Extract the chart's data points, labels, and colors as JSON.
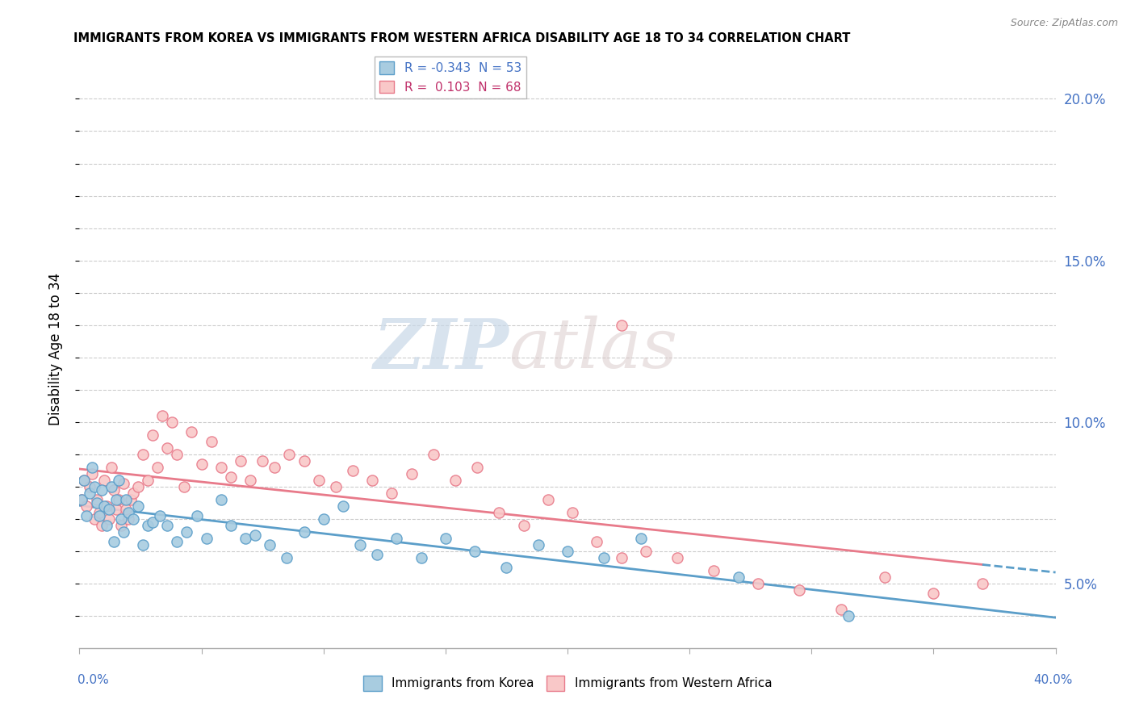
{
  "title": "IMMIGRANTS FROM KOREA VS IMMIGRANTS FROM WESTERN AFRICA DISABILITY AGE 18 TO 34 CORRELATION CHART",
  "source": "Source: ZipAtlas.com",
  "ylabel": "Disability Age 18 to 34",
  "xlim": [
    0.0,
    0.4
  ],
  "ylim": [
    0.03,
    0.215
  ],
  "korea_color": "#a8cce0",
  "korea_edge": "#5b9ec9",
  "africa_color": "#f9c8c8",
  "africa_edge": "#e87a8a",
  "korea_R": -0.343,
  "korea_N": 53,
  "africa_R": 0.103,
  "africa_N": 68,
  "watermark_zip": "ZIP",
  "watermark_atlas": "atlas",
  "korea_scatter_x": [
    0.001,
    0.002,
    0.003,
    0.004,
    0.005,
    0.006,
    0.007,
    0.008,
    0.009,
    0.01,
    0.011,
    0.012,
    0.013,
    0.014,
    0.015,
    0.016,
    0.017,
    0.018,
    0.019,
    0.02,
    0.022,
    0.024,
    0.026,
    0.028,
    0.03,
    0.033,
    0.036,
    0.04,
    0.044,
    0.048,
    0.052,
    0.058,
    0.062,
    0.068,
    0.072,
    0.078,
    0.085,
    0.092,
    0.1,
    0.108,
    0.115,
    0.122,
    0.13,
    0.14,
    0.15,
    0.162,
    0.175,
    0.188,
    0.2,
    0.215,
    0.23,
    0.27,
    0.315
  ],
  "korea_scatter_y": [
    0.076,
    0.082,
    0.071,
    0.078,
    0.086,
    0.08,
    0.075,
    0.071,
    0.079,
    0.074,
    0.068,
    0.073,
    0.08,
    0.063,
    0.076,
    0.082,
    0.07,
    0.066,
    0.076,
    0.072,
    0.07,
    0.074,
    0.062,
    0.068,
    0.069,
    0.071,
    0.068,
    0.063,
    0.066,
    0.071,
    0.064,
    0.076,
    0.068,
    0.064,
    0.065,
    0.062,
    0.058,
    0.066,
    0.07,
    0.074,
    0.062,
    0.059,
    0.064,
    0.058,
    0.064,
    0.06,
    0.055,
    0.062,
    0.06,
    0.058,
    0.064,
    0.052,
    0.04
  ],
  "africa_scatter_x": [
    0.001,
    0.002,
    0.003,
    0.004,
    0.005,
    0.006,
    0.007,
    0.008,
    0.009,
    0.01,
    0.011,
    0.012,
    0.013,
    0.014,
    0.015,
    0.016,
    0.017,
    0.018,
    0.019,
    0.02,
    0.021,
    0.022,
    0.024,
    0.026,
    0.028,
    0.03,
    0.032,
    0.034,
    0.036,
    0.038,
    0.04,
    0.043,
    0.046,
    0.05,
    0.054,
    0.058,
    0.062,
    0.066,
    0.07,
    0.075,
    0.08,
    0.086,
    0.092,
    0.098,
    0.105,
    0.112,
    0.12,
    0.128,
    0.136,
    0.145,
    0.154,
    0.163,
    0.172,
    0.182,
    0.192,
    0.202,
    0.212,
    0.222,
    0.232,
    0.245,
    0.26,
    0.278,
    0.295,
    0.312,
    0.33,
    0.35,
    0.37,
    0.222
  ],
  "africa_scatter_y": [
    0.076,
    0.082,
    0.074,
    0.08,
    0.084,
    0.07,
    0.076,
    0.072,
    0.068,
    0.082,
    0.074,
    0.07,
    0.086,
    0.079,
    0.073,
    0.076,
    0.068,
    0.081,
    0.073,
    0.07,
    0.076,
    0.078,
    0.08,
    0.09,
    0.082,
    0.096,
    0.086,
    0.102,
    0.092,
    0.1,
    0.09,
    0.08,
    0.097,
    0.087,
    0.094,
    0.086,
    0.083,
    0.088,
    0.082,
    0.088,
    0.086,
    0.09,
    0.088,
    0.082,
    0.08,
    0.085,
    0.082,
    0.078,
    0.084,
    0.09,
    0.082,
    0.086,
    0.072,
    0.068,
    0.076,
    0.072,
    0.063,
    0.058,
    0.06,
    0.058,
    0.054,
    0.05,
    0.048,
    0.042,
    0.052,
    0.047,
    0.05,
    0.13
  ]
}
